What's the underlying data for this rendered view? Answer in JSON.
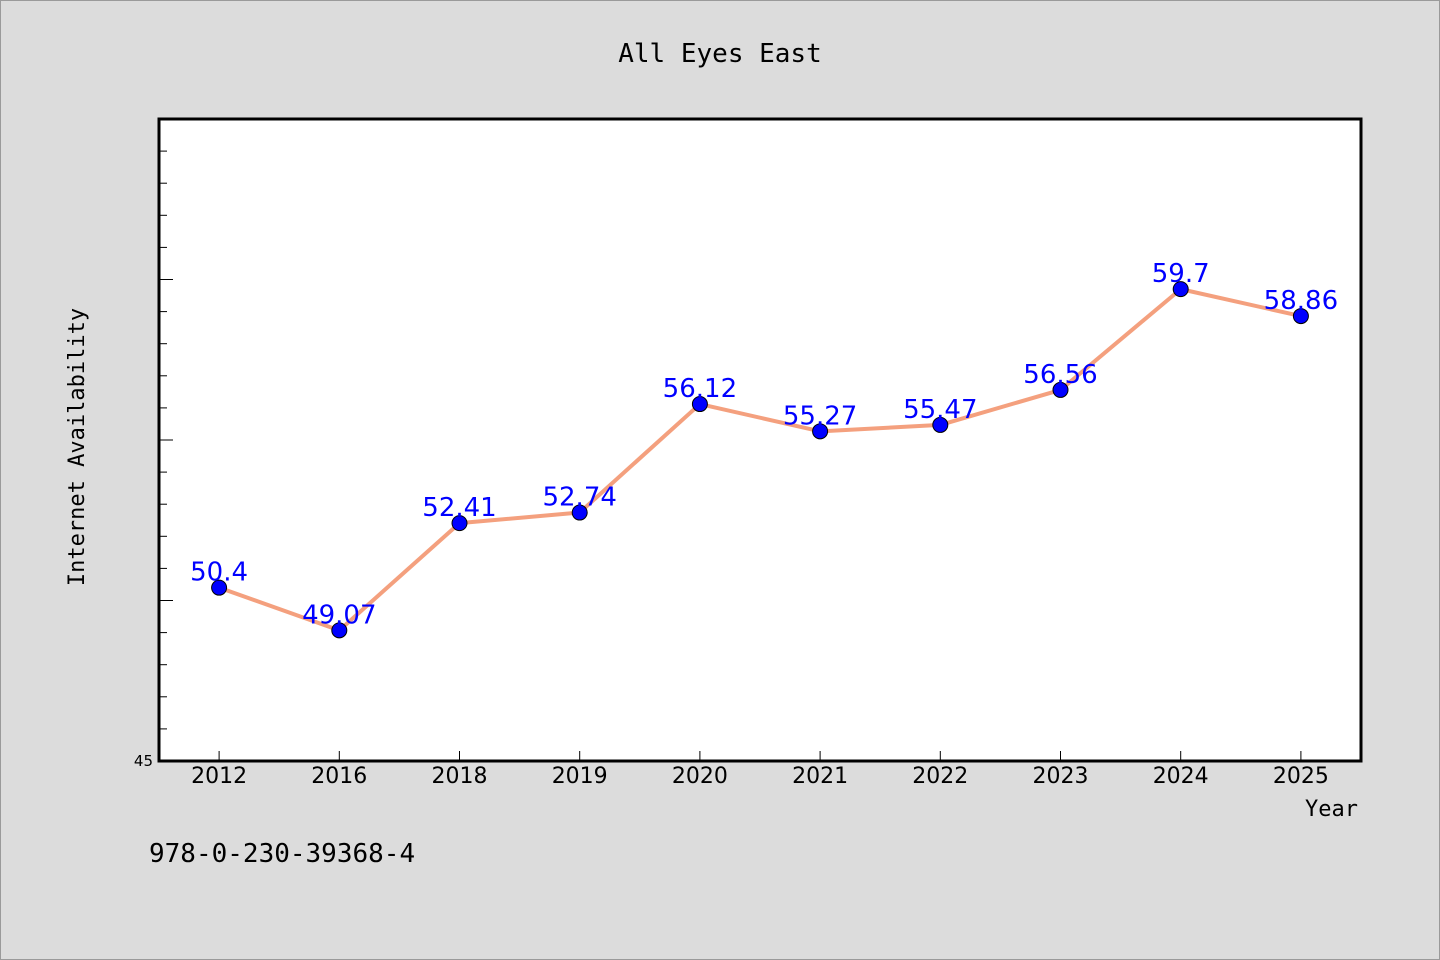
{
  "chart_data": {
    "type": "line",
    "title": "All Eyes East",
    "xlabel": "Year",
    "ylabel": "Internet Availability",
    "categories": [
      "2012",
      "2016",
      "2018",
      "2019",
      "2020",
      "2021",
      "2022",
      "2023",
      "2024",
      "2025"
    ],
    "series": [
      {
        "values": [
          50.4,
          49.07,
          52.41,
          52.74,
          56.12,
          55.27,
          55.47,
          56.56,
          59.7,
          58.86
        ],
        "data_labels": [
          "50.4",
          "49.07",
          "52.41",
          "52.74",
          "56.12",
          "55.27",
          "55.47",
          "56.56",
          "59.7",
          "58.86"
        ],
        "line_color": "#f4a07e",
        "marker_color": "#0000ff"
      }
    ],
    "ylim": [
      45,
      65
    ],
    "y_tick_labels": [
      "45"
    ],
    "y_minor_step": 1,
    "grid": false,
    "legend": "none"
  },
  "footer": {
    "isbn": "978-0-230-39368-4"
  },
  "colors": {
    "background": "#dcdcdc",
    "plot_background": "#ffffff",
    "line": "#f4a07e",
    "marker": "#0000ff",
    "data_label": "#0000ff"
  }
}
